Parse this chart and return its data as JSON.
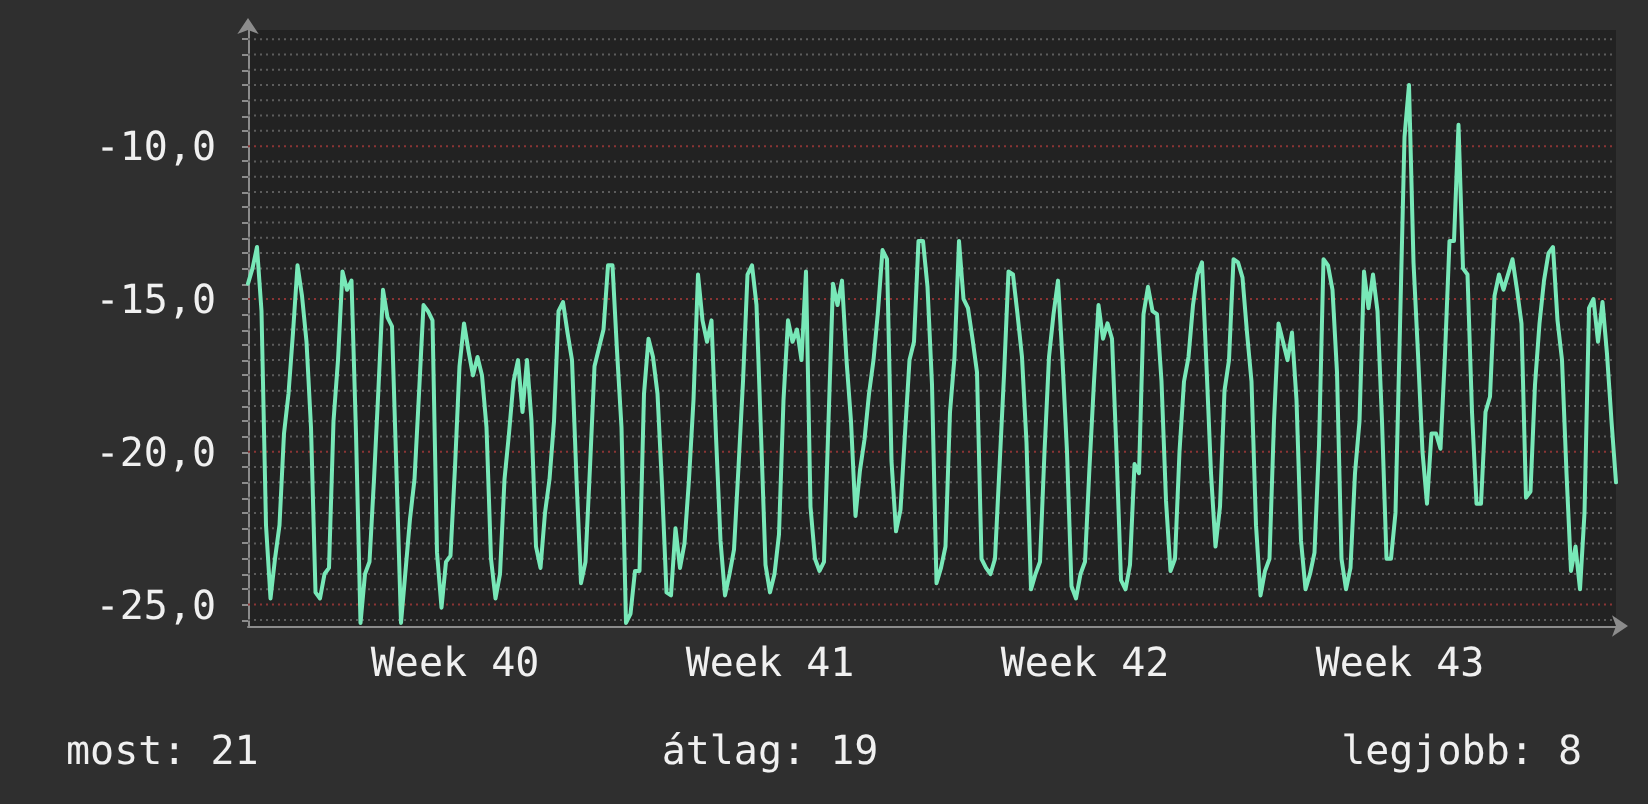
{
  "chart_data": {
    "type": "line",
    "color": "#78e8b8",
    "marker": "none",
    "grid": "y",
    "categories": [
      null,
      null,
      null,
      null,
      null,
      null,
      null,
      null,
      null,
      null,
      null,
      null,
      null,
      null,
      null,
      null,
      null,
      null,
      null,
      null,
      null,
      null,
      null,
      null,
      null,
      null,
      null,
      null,
      null,
      null,
      null,
      null,
      null,
      null,
      null,
      null,
      null,
      null,
      null,
      null,
      null,
      null,
      null,
      null,
      null,
      null,
      "Week 40",
      null,
      null,
      null,
      null,
      null,
      null,
      null,
      null,
      null,
      null,
      null,
      null,
      null,
      null,
      null,
      null,
      null,
      null,
      null,
      null,
      null,
      null,
      null,
      null,
      null,
      null,
      null,
      null,
      null,
      null,
      null,
      null,
      null,
      null,
      null,
      null,
      null,
      null,
      null,
      null,
      null,
      null,
      null,
      null,
      null,
      null,
      null,
      null,
      null,
      null,
      null,
      null,
      null,
      null,
      null,
      null,
      null,
      null,
      null,
      null,
      null,
      null,
      null,
      null,
      null,
      null,
      null,
      null,
      null,
      "Week 41",
      null,
      null,
      null,
      null,
      null,
      null,
      null,
      null,
      null,
      null,
      null,
      null,
      null,
      null,
      null,
      null,
      null,
      null,
      null,
      null,
      null,
      null,
      null,
      null,
      null,
      null,
      null,
      null,
      null,
      null,
      null,
      null,
      null,
      null,
      null,
      null,
      null,
      null,
      null,
      null,
      null,
      null,
      null,
      null,
      null,
      null,
      null,
      null,
      null,
      null,
      null,
      null,
      null,
      null,
      null,
      null,
      null,
      null,
      null,
      null,
      null,
      null,
      null,
      null,
      null,
      null,
      null,
      null,
      null,
      "Week 42",
      null,
      null,
      null,
      null,
      null,
      null,
      null,
      null,
      null,
      null,
      null,
      null,
      null,
      null,
      null,
      null,
      null,
      null,
      null,
      null,
      null,
      null,
      null,
      null,
      null,
      null,
      null,
      null,
      null,
      null,
      null,
      null,
      null,
      null,
      null,
      null,
      null,
      null,
      null,
      null,
      null,
      null,
      null,
      null,
      null,
      null,
      null,
      null,
      null,
      null,
      null,
      null,
      null,
      null,
      null,
      null,
      null,
      null,
      null,
      null,
      null,
      null,
      null,
      null,
      null,
      null,
      null,
      null,
      null,
      "Week 43",
      null,
      null,
      null,
      null,
      null,
      null,
      null,
      null,
      null,
      null,
      null,
      null,
      null,
      null,
      null,
      null,
      null,
      null,
      null,
      null,
      null,
      null,
      null,
      null,
      null,
      null,
      null,
      null,
      null,
      null,
      null,
      null,
      null,
      null,
      null,
      null,
      null,
      null,
      null,
      null,
      null,
      null,
      null,
      null,
      null,
      null,
      null,
      null
    ],
    "ylim": [
      -25.7,
      -6.2
    ],
    "yticks": [
      {
        "value": -25.5,
        "label": null
      },
      {
        "value": -25,
        "label": "-25,0"
      },
      {
        "value": -24.5,
        "label": null
      },
      {
        "value": -24,
        "label": null
      },
      {
        "value": -23.5,
        "label": null
      },
      {
        "value": -23,
        "label": null
      },
      {
        "value": -22.5,
        "label": null
      },
      {
        "value": -22,
        "label": null
      },
      {
        "value": -21.5,
        "label": null
      },
      {
        "value": -21,
        "label": null
      },
      {
        "value": -20.5,
        "label": null
      },
      {
        "value": -20,
        "label": "-20,0"
      },
      {
        "value": -19.5,
        "label": null
      },
      {
        "value": -19,
        "label": null
      },
      {
        "value": -18.5,
        "label": null
      },
      {
        "value": -18,
        "label": null
      },
      {
        "value": -17.5,
        "label": null
      },
      {
        "value": -17,
        "label": null
      },
      {
        "value": -16.5,
        "label": null
      },
      {
        "value": -16,
        "label": null
      },
      {
        "value": -15.5,
        "label": null
      },
      {
        "value": -15,
        "label": "-15,0"
      },
      {
        "value": -14.5,
        "label": null
      },
      {
        "value": -14,
        "label": null
      },
      {
        "value": -13.5,
        "label": null
      },
      {
        "value": -13,
        "label": null
      },
      {
        "value": -12.5,
        "label": null
      },
      {
        "value": -12,
        "label": null
      },
      {
        "value": -11.5,
        "label": null
      },
      {
        "value": -11,
        "label": null
      },
      {
        "value": -10.5,
        "label": null
      },
      {
        "value": -10,
        "label": "-10,0"
      },
      {
        "value": -9.5,
        "label": null
      },
      {
        "value": -9,
        "label": null
      },
      {
        "value": -8.5,
        "label": null
      },
      {
        "value": -8,
        "label": null
      },
      {
        "value": -7.5,
        "label": null
      },
      {
        "value": -7,
        "label": null
      },
      {
        "value": -6.5,
        "label": null
      }
    ],
    "values": [
      -14.5,
      -14,
      -13.3,
      -15.4,
      -22.4,
      -24.8,
      -23.5,
      -22.4,
      -19.4,
      -18.1,
      -16.1,
      -13.9,
      -14.9,
      -16.4,
      -19.2,
      -24.6,
      -24.8,
      -24,
      -23.8,
      -19,
      -17,
      -14.1,
      -14.7,
      -14.4,
      -19.4,
      -25.6,
      -24,
      -23.6,
      -20.9,
      -17.9,
      -14.7,
      -15.6,
      -15.9,
      -20.7,
      -25.6,
      -23.9,
      -22.2,
      -20.9,
      -18.1,
      -15.2,
      -15.4,
      -15.7,
      -23.3,
      -25.1,
      -23.6,
      -23.4,
      -20.5,
      -17.2,
      -15.8,
      -16.7,
      -17.5,
      -16.9,
      -17.5,
      -19.2,
      -23.5,
      -24.8,
      -24,
      -20.9,
      -19.4,
      -17.7,
      -17,
      -18.7,
      -17,
      -19,
      -23.1,
      -23.8,
      -22,
      -20.9,
      -19,
      -15.4,
      -15.1,
      -16.1,
      -17,
      -20.9,
      -24.3,
      -23.6,
      -20.5,
      -17.2,
      -16.6,
      -16,
      -13.9,
      -13.9,
      -16.7,
      -19.2,
      -25.6,
      -25.3,
      -23.9,
      -23.9,
      -18.1,
      -16.3,
      -16.9,
      -18.1,
      -21.1,
      -24.6,
      -24.7,
      -22.5,
      -23.8,
      -23,
      -20.9,
      -18.3,
      -14.2,
      -15.7,
      -16.4,
      -15.7,
      -19.5,
      -22.9,
      -24.7,
      -24,
      -23.2,
      -20.5,
      -17.7,
      -14.2,
      -13.9,
      -15.2,
      -19.4,
      -23.7,
      -24.6,
      -24,
      -22.7,
      -18.3,
      -15.7,
      -16.4,
      -16,
      -17,
      -14.1,
      -21.8,
      -23.5,
      -23.9,
      -23.6,
      -19,
      -14.5,
      -15.2,
      -14.4,
      -17,
      -19,
      -22.1,
      -20.6,
      -19.6,
      -18.1,
      -17,
      -15.4,
      -13.4,
      -13.7,
      -20.3,
      -22.6,
      -21.9,
      -19.4,
      -17,
      -16.4,
      -13.1,
      -13.1,
      -14.6,
      -17.8,
      -24.3,
      -23.8,
      -23.1,
      -18.7,
      -16.9,
      -13.1,
      -15,
      -15.3,
      -16.3,
      -17.4,
      -23.5,
      -23.8,
      -24,
      -23.5,
      -20.5,
      -17.5,
      -14.1,
      -14.2,
      -15.5,
      -16.9,
      -19.7,
      -24.5,
      -24,
      -23.6,
      -20,
      -16.9,
      -15.5,
      -14.4,
      -17,
      -20,
      -24.4,
      -24.8,
      -24,
      -23.6,
      -20.5,
      -17.7,
      -15.2,
      -16.3,
      -15.8,
      -16.3,
      -20,
      -24.2,
      -24.5,
      -23.7,
      -20.4,
      -20.7,
      -15.5,
      -14.6,
      -15.4,
      -15.5,
      -17.7,
      -21.6,
      -23.9,
      -23.5,
      -20,
      -17.7,
      -16.9,
      -15.2,
      -14.2,
      -13.8,
      -17.2,
      -20.7,
      -23.1,
      -21.8,
      -18,
      -17,
      -13.7,
      -13.8,
      -14.3,
      -16.1,
      -17.7,
      -22.4,
      -24.7,
      -23.9,
      -23.5,
      -19,
      -15.8,
      -16.4,
      -17,
      -16.1,
      -18.3,
      -22.9,
      -24.5,
      -24,
      -23.3,
      -19.8,
      -13.7,
      -13.9,
      -14.7,
      -17.4,
      -23.5,
      -24.5,
      -23.8,
      -20.7,
      -19,
      -14.1,
      -15.3,
      -14.2,
      -15.4,
      -19,
      -23.5,
      -23.5,
      -22,
      -15.9,
      -9.7,
      -8,
      -13.8,
      -16.8,
      -20,
      -21.7,
      -19.4,
      -19.4,
      -19.9,
      -16.8,
      -13.1,
      -13.1,
      -9.3,
      -14,
      -14.2,
      -18.7,
      -21.7,
      -21.7,
      -18.7,
      -18.2,
      -14.9,
      -14.2,
      -14.7,
      -14.2,
      -13.7,
      -14.7,
      -15.8,
      -21.5,
      -21.3,
      -17.8,
      -15.8,
      -14.4,
      -13.5,
      -13.3,
      -15.7,
      -17,
      -20.7,
      -23.9,
      -23.1,
      -24.5,
      -22,
      -15.3,
      -15,
      -16.4,
      -15.1,
      -16.8,
      -19,
      -21
    ],
    "annotations": [
      "most: 21",
      "átlag: 19",
      "legjobb: 8"
    ]
  }
}
